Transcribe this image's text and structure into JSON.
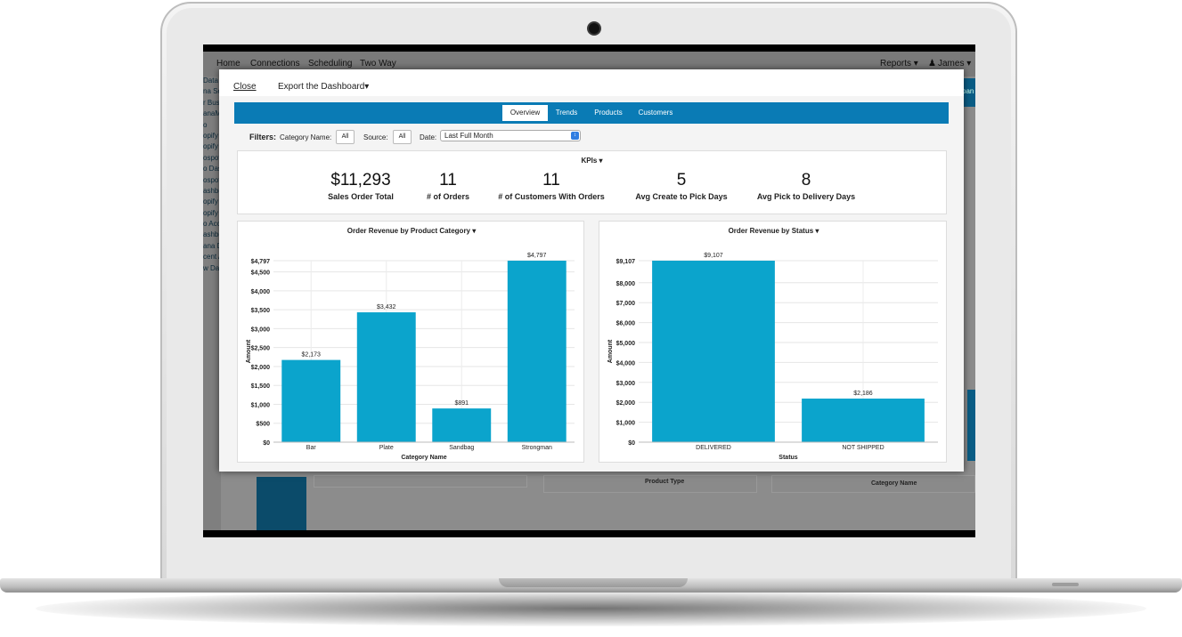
{
  "background_app": {
    "nav": {
      "home": "Home",
      "connections": "Connections",
      "scheduling": "Scheduling",
      "two_way": "Two Way",
      "reports": "Reports ▾",
      "user": "James ▾"
    },
    "sidebar_items": [
      "Data",
      "na Sou",
      "r Bus",
      "anaM",
      "o",
      "opify",
      "opify",
      "ospot",
      "o Das",
      "ospot",
      "ashbo",
      "opify",
      "opify",
      "o Acc",
      "ashbo",
      "ana D",
      "cent A",
      "w Da"
    ],
    "bottom_labels": {
      "product_type": "Product Type",
      "category_name": "Category Name"
    },
    "top_right": "pan"
  },
  "modal": {
    "close": "Close",
    "export": "Export the Dashboard▾",
    "tabs": [
      {
        "label": "Overview",
        "active": true
      },
      {
        "label": "Trends",
        "active": false
      },
      {
        "label": "Products",
        "active": false
      },
      {
        "label": "Customers",
        "active": false
      }
    ],
    "filters": {
      "title": "Filters:",
      "category_label": "Category Name:",
      "category_value": "All",
      "source_label": "Source:",
      "source_value": "All",
      "date_label": "Date:",
      "date_value": "Last Full Month"
    },
    "kpi_title": "KPIs ▾",
    "kpis": [
      {
        "value": "$11,293",
        "label": "Sales Order Total"
      },
      {
        "value": "11",
        "label": "# of Orders"
      },
      {
        "value": "11",
        "label": "# of Customers With Orders"
      },
      {
        "value": "5",
        "label": "Avg Create to Pick Days"
      },
      {
        "value": "8",
        "label": "Avg Pick to Delivery Days"
      }
    ]
  },
  "chart_data": [
    {
      "type": "bar",
      "title": "Order Revenue by Product Category ▾",
      "xlabel": "Category Name",
      "ylabel": "Amount",
      "categories": [
        "Bar",
        "Plate",
        "Sandbag",
        "Strongman"
      ],
      "values": [
        2173,
        3432,
        891,
        4797
      ],
      "value_labels": [
        "$2,173",
        "$3,432",
        "$891",
        "$4,797"
      ],
      "ylim": [
        0,
        4797
      ],
      "yticks": [
        0,
        500,
        1000,
        1500,
        2000,
        2500,
        3000,
        3500,
        4000,
        4500,
        4797
      ],
      "ytick_labels": [
        "$0",
        "$500",
        "$1,000",
        "$1,500",
        "$2,000",
        "$2,500",
        "$3,000",
        "$3,500",
        "$4,000",
        "$4,500",
        "$4,797"
      ],
      "color": "#0ba4cc",
      "grid": true
    },
    {
      "type": "bar",
      "title": "Order Revenue by Status ▾",
      "xlabel": "Status",
      "ylabel": "Amount",
      "categories": [
        "DELIVERED",
        "NOT SHIPPED"
      ],
      "values": [
        9107,
        2186
      ],
      "value_labels": [
        "$9,107",
        "$2,186"
      ],
      "ylim": [
        0,
        9107
      ],
      "yticks": [
        0,
        1000,
        2000,
        3000,
        4000,
        5000,
        6000,
        7000,
        8000,
        9107
      ],
      "ytick_labels": [
        "$0",
        "$1,000",
        "$2,000",
        "$3,000",
        "$4,000",
        "$5,000",
        "$6,000",
        "$7,000",
        "$8,000",
        "$9,107"
      ],
      "color": "#0ba4cc",
      "grid": true
    }
  ]
}
